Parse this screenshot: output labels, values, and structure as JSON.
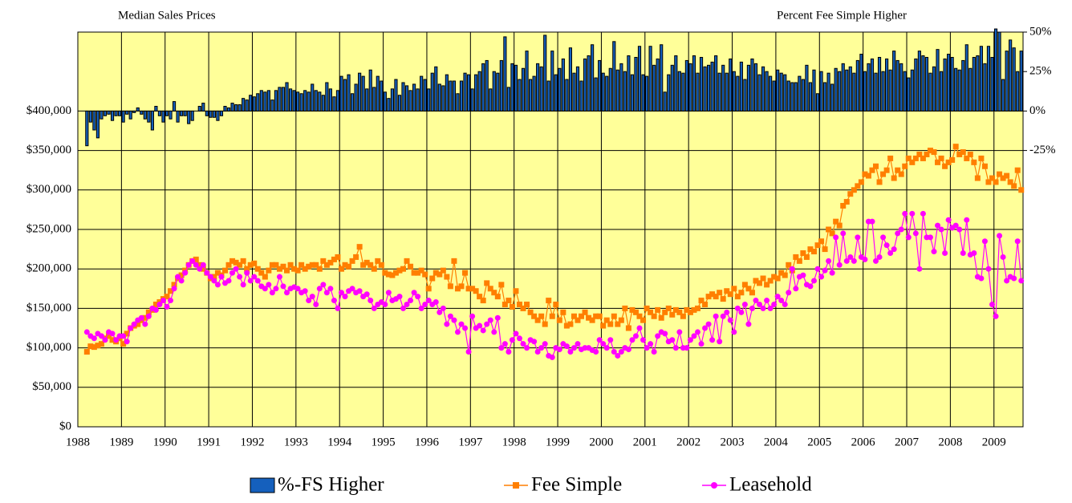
{
  "chart_data": {
    "type": "bar-line",
    "title": "Median Sales Prices",
    "y2_title": "Percent Fee Simple Higher",
    "categories": [
      "1988",
      null,
      null,
      null,
      null,
      null,
      null,
      null,
      null,
      null,
      null,
      null,
      "1989",
      null,
      null,
      null,
      null,
      null,
      null,
      null,
      null,
      null,
      null,
      null,
      "1990",
      null,
      null,
      null,
      null,
      null,
      null,
      null,
      null,
      null,
      null,
      null,
      "1991",
      null,
      null,
      null,
      null,
      null,
      null,
      null,
      null,
      null,
      null,
      null,
      "1992",
      null,
      null,
      null,
      null,
      null,
      null,
      null,
      null,
      null,
      null,
      null,
      "1993",
      null,
      null,
      null,
      null,
      null,
      null,
      null,
      null,
      null,
      null,
      null,
      "1994",
      null,
      null,
      null,
      null,
      null,
      null,
      null,
      null,
      null,
      null,
      null,
      "1995",
      null,
      null,
      null,
      null,
      null,
      null,
      null,
      null,
      null,
      null,
      null,
      "1996",
      null,
      null,
      null,
      null,
      null,
      null,
      null,
      null,
      null,
      null,
      null,
      "1997",
      null,
      null,
      null,
      null,
      null,
      null,
      null,
      null,
      null,
      null,
      null,
      "1998",
      null,
      null,
      null,
      null,
      null,
      null,
      null,
      null,
      null,
      null,
      null,
      "1999",
      null,
      null,
      null,
      null,
      null,
      null,
      null,
      null,
      null,
      null,
      null,
      "2000",
      null,
      null,
      null,
      null,
      null,
      null,
      null,
      null,
      null,
      null,
      null,
      "2001",
      null,
      null,
      null,
      null,
      null,
      null,
      null,
      null,
      null,
      null,
      null,
      "2002",
      null,
      null,
      null,
      null,
      null,
      null,
      null,
      null,
      null,
      null,
      null,
      "2003",
      null,
      null,
      null,
      null,
      null,
      null,
      null,
      null,
      null,
      null,
      null,
      "2004",
      null,
      null,
      null,
      null,
      null,
      null,
      null,
      null,
      null,
      null,
      null,
      "2005",
      null,
      null,
      null,
      null,
      null,
      null,
      null,
      null,
      null,
      null,
      null,
      "2006",
      null,
      null,
      null,
      null,
      null,
      null,
      null,
      null,
      null,
      null,
      null,
      "2007",
      null,
      null,
      null,
      null,
      null,
      null,
      null,
      null,
      null,
      null,
      null,
      "2008",
      null,
      null,
      null,
      null,
      null,
      null,
      null,
      null,
      null,
      null,
      null,
      "2009",
      null,
      null,
      null,
      null,
      null,
      null,
      null
    ],
    "series": [
      {
        "name": "%-FS Higher",
        "type": "bar",
        "axis": "y2",
        "color": "#1560bd",
        "values": [
          null,
          null,
          -22,
          -7,
          -12,
          -17,
          -5,
          -3,
          -2,
          -6,
          -3,
          -3,
          -7,
          -2,
          -5,
          -1,
          2,
          -2,
          -5,
          -7,
          -12,
          3,
          -3,
          -7,
          -3,
          -5,
          6,
          -7,
          -3,
          -3,
          -8,
          -6,
          0,
          3,
          5,
          -3,
          -4,
          -4,
          -6,
          -3,
          3,
          2,
          5,
          4,
          4,
          8,
          7,
          10,
          9,
          11,
          13,
          12,
          13,
          7,
          13,
          15,
          15,
          18,
          14,
          13,
          12,
          11,
          13,
          12,
          17,
          13,
          12,
          10,
          18,
          14,
          9,
          13,
          22,
          20,
          23,
          11,
          17,
          24,
          22,
          14,
          26,
          15,
          22,
          19,
          12,
          8,
          14,
          20,
          10,
          18,
          16,
          13,
          17,
          14,
          22,
          20,
          14,
          24,
          28,
          17,
          16,
          23,
          19,
          19,
          11,
          19,
          24,
          23,
          14,
          23,
          25,
          30,
          32,
          14,
          25,
          24,
          32,
          47,
          15,
          30,
          29,
          20,
          27,
          38,
          20,
          22,
          30,
          28,
          48,
          19,
          38,
          23,
          27,
          33,
          20,
          40,
          24,
          28,
          19,
          33,
          35,
          42,
          21,
          32,
          24,
          22,
          27,
          44,
          26,
          30,
          25,
          35,
          23,
          34,
          41,
          23,
          22,
          41,
          29,
          33,
          42,
          12,
          23,
          29,
          35,
          25,
          24,
          32,
          30,
          35,
          24,
          34,
          28,
          29,
          31,
          35,
          24,
          29,
          24,
          33,
          25,
          22,
          31,
          20,
          29,
          33,
          30,
          23,
          28,
          25,
          22,
          19,
          26,
          24,
          23,
          19,
          18,
          18,
          22,
          20,
          29,
          18,
          26,
          11,
          25,
          18,
          24,
          17,
          27,
          25,
          30,
          26,
          28,
          24,
          32,
          36,
          25,
          30,
          33,
          24,
          34,
          25,
          33,
          26,
          38,
          32,
          30,
          25,
          21,
          26,
          33,
          38,
          35,
          34,
          24,
          28,
          39,
          25,
          33,
          36,
          34,
          27,
          26,
          32,
          42,
          27,
          34,
          35,
          41,
          30,
          41,
          34,
          52,
          50,
          20,
          38,
          45,
          40,
          25,
          38
        ]
      },
      {
        "name": "Fee Simple",
        "type": "line",
        "marker": "square",
        "color": "#ff7f00",
        "values": [
          null,
          null,
          95000,
          102000,
          101000,
          103000,
          105000,
          112000,
          115000,
          110000,
          108000,
          112000,
          105000,
          118000,
          125000,
          128000,
          130000,
          135000,
          138000,
          145000,
          148000,
          155000,
          158000,
          162000,
          165000,
          172000,
          180000,
          188000,
          192000,
          198000,
          205000,
          210000,
          212000,
          205000,
          200000,
          195000,
          188000,
          190000,
          195000,
          192000,
          198000,
          205000,
          210000,
          208000,
          205000,
          210000,
          200000,
          205000,
          207000,
          200000,
          195000,
          190000,
          198000,
          205000,
          205000,
          200000,
          203000,
          198000,
          205000,
          200000,
          198000,
          205000,
          200000,
          203000,
          205000,
          205000,
          200000,
          210000,
          205000,
          208000,
          212000,
          215000,
          200000,
          205000,
          203000,
          210000,
          215000,
          228000,
          205000,
          208000,
          205000,
          200000,
          210000,
          205000,
          195000,
          193000,
          192000,
          195000,
          198000,
          200000,
          210000,
          203000,
          195000,
          195000,
          198000,
          193000,
          175000,
          188000,
          195000,
          193000,
          198000,
          190000,
          178000,
          210000,
          175000,
          178000,
          195000,
          175000,
          175000,
          172000,
          165000,
          160000,
          182000,
          175000,
          170000,
          165000,
          180000,
          155000,
          160000,
          152000,
          172000,
          155000,
          150000,
          155000,
          145000,
          140000,
          135000,
          140000,
          130000,
          160000,
          140000,
          155000,
          135000,
          145000,
          128000,
          130000,
          140000,
          135000,
          140000,
          145000,
          138000,
          135000,
          140000,
          140000,
          128000,
          135000,
          130000,
          140000,
          130000,
          135000,
          150000,
          125000,
          148000,
          145000,
          140000,
          135000,
          150000,
          145000,
          140000,
          148000,
          138000,
          145000,
          150000,
          142000,
          148000,
          145000,
          140000,
          148000,
          145000,
          148000,
          150000,
          160000,
          155000,
          165000,
          168000,
          165000,
          170000,
          162000,
          172000,
          168000,
          175000,
          165000,
          170000,
          180000,
          175000,
          170000,
          185000,
          182000,
          188000,
          180000,
          185000,
          190000,
          188000,
          195000,
          192000,
          205000,
          198000,
          215000,
          210000,
          220000,
          215000,
          225000,
          222000,
          230000,
          235000,
          225000,
          250000,
          245000,
          260000,
          255000,
          280000,
          285000,
          295000,
          300000,
          305000,
          310000,
          320000,
          318000,
          325000,
          330000,
          310000,
          320000,
          325000,
          340000,
          315000,
          325000,
          320000,
          330000,
          340000,
          335000,
          340000,
          345000,
          340000,
          345000,
          350000,
          348000,
          335000,
          340000,
          330000,
          335000,
          338000,
          355000,
          345000,
          348000,
          340000,
          345000,
          335000,
          315000,
          340000,
          330000,
          310000,
          315000,
          310000,
          320000,
          315000,
          318000,
          310000,
          305000,
          325000,
          300000
        ]
      },
      {
        "name": "Leasehold",
        "type": "line",
        "marker": "circle",
        "color": "#ff00ff",
        "values": [
          null,
          null,
          120000,
          115000,
          112000,
          118000,
          115000,
          110000,
          120000,
          118000,
          110000,
          115000,
          115000,
          108000,
          125000,
          130000,
          135000,
          138000,
          130000,
          140000,
          150000,
          148000,
          155000,
          160000,
          152000,
          160000,
          175000,
          190000,
          185000,
          195000,
          205000,
          210000,
          205000,
          200000,
          205000,
          195000,
          190000,
          185000,
          180000,
          190000,
          182000,
          185000,
          195000,
          200000,
          190000,
          180000,
          195000,
          185000,
          190000,
          185000,
          178000,
          175000,
          180000,
          170000,
          175000,
          190000,
          178000,
          170000,
          175000,
          177000,
          175000,
          170000,
          172000,
          160000,
          165000,
          155000,
          175000,
          180000,
          170000,
          175000,
          160000,
          150000,
          170000,
          165000,
          172000,
          175000,
          170000,
          172000,
          165000,
          168000,
          160000,
          150000,
          155000,
          158000,
          155000,
          170000,
          160000,
          162000,
          165000,
          150000,
          155000,
          160000,
          170000,
          165000,
          150000,
          155000,
          160000,
          155000,
          158000,
          145000,
          150000,
          130000,
          140000,
          135000,
          120000,
          130000,
          125000,
          95000,
          140000,
          125000,
          128000,
          122000,
          130000,
          135000,
          120000,
          138000,
          100000,
          105000,
          95000,
          110000,
          118000,
          112000,
          105000,
          100000,
          110000,
          108000,
          95000,
          100000,
          105000,
          90000,
          88000,
          100000,
          98000,
          105000,
          102000,
          95000,
          100000,
          105000,
          98000,
          100000,
          100000,
          97000,
          95000,
          110000,
          105000,
          100000,
          110000,
          95000,
          90000,
          95000,
          100000,
          98000,
          110000,
          115000,
          125000,
          110000,
          100000,
          105000,
          95000,
          115000,
          120000,
          118000,
          108000,
          110000,
          100000,
          120000,
          100000,
          100000,
          110000,
          115000,
          120000,
          105000,
          125000,
          130000,
          110000,
          140000,
          108000,
          140000,
          145000,
          135000,
          120000,
          150000,
          145000,
          155000,
          130000,
          150000,
          160000,
          155000,
          150000,
          160000,
          150000,
          155000,
          165000,
          160000,
          155000,
          170000,
          200000,
          175000,
          190000,
          192000,
          180000,
          178000,
          185000,
          200000,
          190000,
          198000,
          210000,
          195000,
          240000,
          205000,
          245000,
          210000,
          215000,
          210000,
          240000,
          215000,
          212000,
          260000,
          260000,
          210000,
          215000,
          240000,
          230000,
          220000,
          225000,
          245000,
          250000,
          270000,
          240000,
          270000,
          245000,
          200000,
          270000,
          240000,
          240000,
          222000,
          255000,
          250000,
          220000,
          262000,
          252000,
          255000,
          250000,
          220000,
          262000,
          218000,
          220000,
          190000,
          188000,
          235000,
          200000,
          155000,
          140000,
          242000,
          215000,
          185000,
          190000,
          188000,
          235000,
          185000
        ]
      }
    ],
    "ylim": [
      0,
      500000
    ],
    "yticks": [
      {
        "value": 0,
        "label": "$0"
      },
      {
        "value": 50000,
        "label": "$50,000"
      },
      {
        "value": 100000,
        "label": "$100,000"
      },
      {
        "value": 150000,
        "label": "$150,000"
      },
      {
        "value": 200000,
        "label": "$200,000"
      },
      {
        "value": 250000,
        "label": "$250,000"
      },
      {
        "value": 300000,
        "label": "$300,000"
      },
      {
        "value": 350000,
        "label": "$350,000"
      },
      {
        "value": 400000,
        "label": "$400,000"
      }
    ],
    "y2lim": [
      -200,
      50
    ],
    "y2ticks": [
      {
        "value": -25,
        "label": "-25%"
      },
      {
        "value": 0,
        "label": "0%"
      },
      {
        "value": 25,
        "label": "25%"
      },
      {
        "value": 50,
        "label": "50%"
      }
    ],
    "grid": true,
    "legend": "bottom",
    "background": "#ffff99"
  }
}
